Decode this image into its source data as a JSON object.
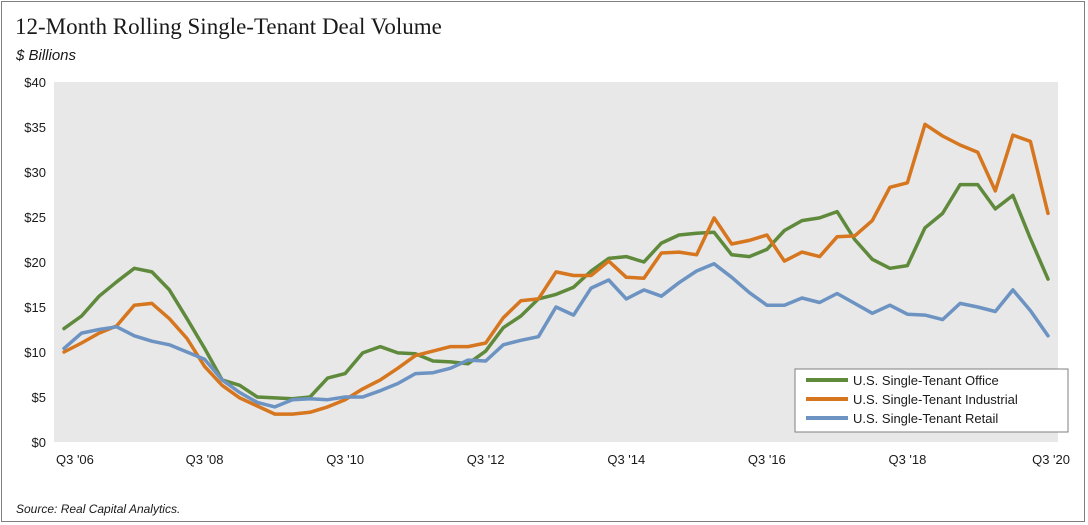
{
  "chart_data": {
    "type": "line",
    "title": "12-Month Rolling Single-Tenant Deal Volume",
    "ylabel": "$ Billions",
    "ylim": [
      0,
      40
    ],
    "yticks": [
      0,
      5,
      10,
      15,
      20,
      25,
      30,
      35,
      40
    ],
    "ytick_labels": [
      "$0",
      "$5",
      "$10",
      "$15",
      "$20",
      "$25",
      "$30",
      "$35",
      "$40"
    ],
    "xlim": [
      0,
      56
    ],
    "xticks": [
      0,
      8,
      16,
      24,
      32,
      40,
      48,
      56
    ],
    "xtick_labels": [
      "Q3 '06",
      "Q3 '08",
      "Q3 '10",
      "Q3 '12",
      "Q3 '14",
      "Q3 '16",
      "Q3 '18",
      "Q3 '20"
    ],
    "grid": false,
    "legend_position": "bottom-right",
    "series": [
      {
        "name": "U.S. Single-Tenant Office",
        "color": "#5f8a3c",
        "x": [
          0,
          1,
          2,
          3,
          4,
          5,
          6,
          7,
          8,
          9,
          10,
          11,
          12,
          13,
          14,
          15,
          16,
          17,
          18,
          19,
          20,
          21,
          22,
          23,
          24,
          25,
          26,
          27,
          28,
          29,
          30,
          31,
          32,
          33,
          34,
          35,
          36,
          37,
          38,
          39,
          40,
          41,
          42,
          43,
          44,
          45,
          46,
          47,
          48,
          49,
          50,
          51,
          52,
          53,
          54,
          55,
          56
        ],
        "values": [
          12.6,
          14.0,
          16.2,
          17.8,
          19.3,
          18.9,
          16.9,
          13.7,
          10.4,
          6.9,
          6.3,
          5.0,
          4.9,
          4.8,
          5.0,
          7.1,
          7.6,
          9.9,
          10.6,
          9.9,
          9.8,
          9.0,
          8.9,
          8.7,
          10.1,
          12.7,
          14.0,
          15.9,
          16.4,
          17.2,
          19.0,
          20.4,
          20.6,
          20.0,
          22.1,
          23.0,
          23.2,
          23.3,
          20.8,
          20.6,
          21.4,
          23.5,
          24.6,
          24.9,
          25.6,
          22.5,
          20.3,
          19.3,
          19.6,
          23.8,
          25.4,
          28.6,
          28.6,
          25.9,
          27.4,
          22.6,
          18.1
        ]
      },
      {
        "name": "U.S. Single-Tenant Industrial",
        "color": "#d6761e",
        "x": [
          0,
          1,
          2,
          3,
          4,
          5,
          6,
          7,
          8,
          9,
          10,
          11,
          12,
          13,
          14,
          15,
          16,
          17,
          18,
          19,
          20,
          21,
          22,
          23,
          24,
          25,
          26,
          27,
          28,
          29,
          30,
          31,
          32,
          33,
          34,
          35,
          36,
          37,
          38,
          39,
          40,
          41,
          42,
          43,
          44,
          45,
          46,
          47,
          48,
          49,
          50,
          51,
          52,
          53,
          54,
          55,
          56
        ],
        "values": [
          10.0,
          11.0,
          12.1,
          12.9,
          15.2,
          15.4,
          13.7,
          11.5,
          8.4,
          6.3,
          4.9,
          4.0,
          3.1,
          3.1,
          3.3,
          3.9,
          4.7,
          5.9,
          6.9,
          8.2,
          9.6,
          10.1,
          10.6,
          10.6,
          11.0,
          13.8,
          15.7,
          15.9,
          18.9,
          18.5,
          18.5,
          20.1,
          18.3,
          18.2,
          21.0,
          21.1,
          20.8,
          24.9,
          22.0,
          22.4,
          23.0,
          20.1,
          21.1,
          20.6,
          22.8,
          22.9,
          24.6,
          28.3,
          28.8,
          35.3,
          34.0,
          33.0,
          32.2,
          27.9,
          34.1,
          33.4,
          25.4
        ]
      },
      {
        "name": "U.S. Single-Tenant Retail",
        "color": "#6c93c2",
        "x": [
          0,
          1,
          2,
          3,
          4,
          5,
          6,
          7,
          8,
          9,
          10,
          11,
          12,
          13,
          14,
          15,
          16,
          17,
          18,
          19,
          20,
          21,
          22,
          23,
          24,
          25,
          26,
          27,
          28,
          29,
          30,
          31,
          32,
          33,
          34,
          35,
          36,
          37,
          38,
          39,
          40,
          41,
          42,
          43,
          44,
          45,
          46,
          47,
          48,
          49,
          50,
          51,
          52,
          53,
          54,
          55,
          56
        ],
        "values": [
          10.4,
          12.1,
          12.5,
          12.8,
          11.8,
          11.2,
          10.8,
          10.0,
          9.2,
          6.9,
          5.5,
          4.4,
          3.9,
          4.7,
          4.8,
          4.7,
          5.0,
          5.0,
          5.7,
          6.5,
          7.6,
          7.7,
          8.2,
          9.1,
          9.0,
          10.8,
          11.3,
          11.7,
          15.0,
          14.1,
          17.1,
          18.0,
          15.9,
          16.9,
          16.2,
          17.7,
          19.0,
          19.8,
          18.3,
          16.6,
          15.2,
          15.2,
          16.0,
          15.5,
          16.5,
          15.4,
          14.3,
          15.2,
          14.2,
          14.1,
          13.6,
          15.4,
          15.0,
          14.5,
          16.9,
          14.6,
          11.8
        ]
      }
    ]
  },
  "source": "Source: Real Capital Analytics."
}
